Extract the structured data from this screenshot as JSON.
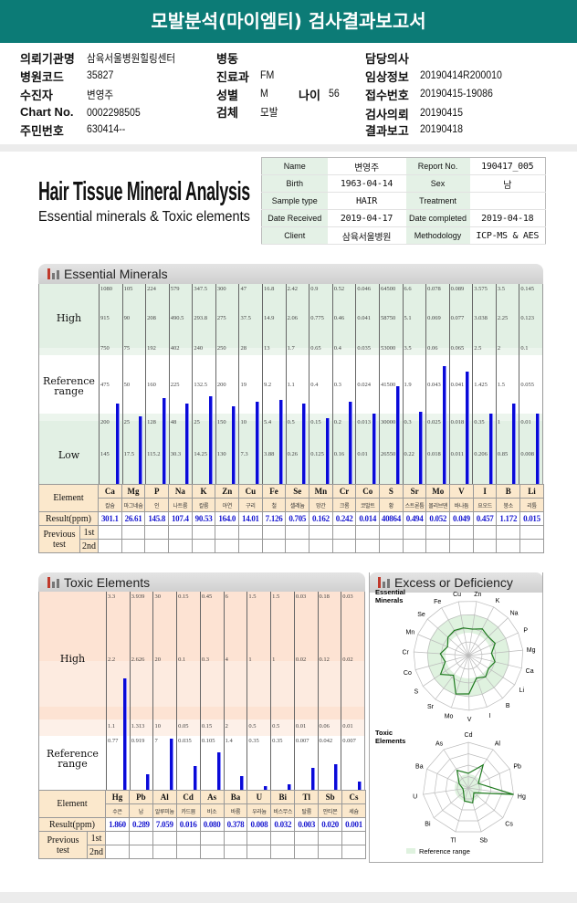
{
  "title": "모발분석(마이엠티) 검사결과보고서",
  "info": {
    "institution_label": "의뢰기관명",
    "institution": "삼육서울병원힐링센터",
    "code_label": "병원코드",
    "code": "35827",
    "patient_label": "수진자",
    "patient": "변영주",
    "chart_label": "Chart No.",
    "chart": "0002298505",
    "id_label": "주민번호",
    "id": "630414--",
    "ward_label": "병동",
    "ward": "",
    "dept_label": "진료과",
    "dept": "FM",
    "sex_label": "성별",
    "sex": "M",
    "age_label": "나이",
    "age": "56",
    "specimen_label": "검체",
    "specimen": "모발",
    "doctor_label": "담당의사",
    "doctor": "",
    "clinical_label": "임상정보",
    "clinical": "20190414R200010",
    "receipt_label": "접수번호",
    "receipt": "20190415-19086",
    "request_label": "검사의뢰",
    "request": "20190415",
    "report_label": "결과보고",
    "report": "20190418"
  },
  "report_header": {
    "title": "Hair Tissue Mineral Analysis",
    "subtitle": "Essential minerals & Toxic elements",
    "rows": [
      [
        "Name",
        "변영주",
        "Report No.",
        "190417_005"
      ],
      [
        "Birth",
        "1963-04-14",
        "Sex",
        "남"
      ],
      [
        "Sample type",
        "HAIR",
        "Treatment",
        ""
      ],
      [
        "Date Received",
        "2019-04-17",
        "Date completed",
        "2019-04-18"
      ],
      [
        "Client",
        "삼육서울병원",
        "Methodology",
        "ICP-MS & AES"
      ]
    ]
  },
  "labels": {
    "essential_title": "Essential Minerals",
    "toxic_title": "Toxic Elements",
    "radar_title": "Excess or Deficiency",
    "high": "High",
    "reference": "Reference",
    "range": "range",
    "low": "Low",
    "element": "Element",
    "result": "Result(ppm)",
    "previous": "Previous",
    "test": "test",
    "first": "1st",
    "second": "2nd",
    "radar_essential": "Essential Minerals",
    "radar_toxic": "Toxic Elements",
    "radar_legend": "Reference range"
  },
  "colors": {
    "teal": "#0c7b76",
    "bar": "#0a0ad8",
    "essential_band": "#e2f0e4",
    "toxic_band": "#fde3d3",
    "header_cell": "#fbe8cc"
  },
  "essential": [
    {
      "sym": "Ca",
      "kr": "칼슘",
      "ranges": [
        "1080",
        "915",
        "750",
        "475",
        "200",
        "145"
      ],
      "result": "301.1",
      "level": 40
    },
    {
      "sym": "Mg",
      "kr": "마그네슘",
      "ranges": [
        "105",
        "90",
        "75",
        "50",
        "25",
        "17.5"
      ],
      "result": "26.61",
      "level": 34
    },
    {
      "sym": "P",
      "kr": "인",
      "ranges": [
        "224",
        "208",
        "192",
        "160",
        "128",
        "115.2"
      ],
      "result": "145.8",
      "level": 43
    },
    {
      "sym": "Na",
      "kr": "나트륨",
      "ranges": [
        "579",
        "490.5",
        "402",
        "225",
        "48",
        "30.3"
      ],
      "result": "107.4",
      "level": 40
    },
    {
      "sym": "K",
      "kr": "칼륨",
      "ranges": [
        "347.5",
        "293.8",
        "240",
        "132.5",
        "25",
        "14.25"
      ],
      "result": "90.53",
      "level": 44
    },
    {
      "sym": "Zn",
      "kr": "아연",
      "ranges": [
        "300",
        "275",
        "250",
        "200",
        "150",
        "130"
      ],
      "result": "164.0",
      "level": 39
    },
    {
      "sym": "Cu",
      "kr": "구리",
      "ranges": [
        "47",
        "37.5",
        "28",
        "19",
        "10",
        "7.3"
      ],
      "result": "14.01",
      "level": 41
    },
    {
      "sym": "Fe",
      "kr": "철",
      "ranges": [
        "16.8",
        "14.9",
        "13",
        "9.2",
        "5.4",
        "3.88"
      ],
      "result": "7.126",
      "level": 42
    },
    {
      "sym": "Se",
      "kr": "셀레늄",
      "ranges": [
        "2.42",
        "2.06",
        "1.7",
        "1.1",
        "0.5",
        "0.26"
      ],
      "result": "0.705",
      "level": 40
    },
    {
      "sym": "Mn",
      "kr": "망간",
      "ranges": [
        "0.9",
        "0.775",
        "0.65",
        "0.4",
        "0.15",
        "0.125"
      ],
      "result": "0.162",
      "level": 33
    },
    {
      "sym": "Cr",
      "kr": "크롬",
      "ranges": [
        "0.52",
        "0.46",
        "0.4",
        "0.3",
        "0.2",
        "0.16"
      ],
      "result": "0.242",
      "level": 41
    },
    {
      "sym": "Co",
      "kr": "코발트",
      "ranges": [
        "0.046",
        "0.041",
        "0.035",
        "0.024",
        "0.013",
        "0.01"
      ],
      "result": "0.014",
      "level": 35
    },
    {
      "sym": "S",
      "kr": "황",
      "ranges": [
        "64500",
        "58750",
        "53000",
        "41500",
        "30000",
        "26550"
      ],
      "result": "40864",
      "level": 49
    },
    {
      "sym": "Sr",
      "kr": "스트론튬",
      "ranges": [
        "6.6",
        "5.1",
        "3.5",
        "1.9",
        "0.3",
        "0.22"
      ],
      "result": "0.494",
      "level": 36
    },
    {
      "sym": "Mo",
      "kr": "몰리브덴",
      "ranges": [
        "0.078",
        "0.069",
        "0.06",
        "0.043",
        "0.025",
        "0.018"
      ],
      "result": "0.052",
      "level": 59
    },
    {
      "sym": "V",
      "kr": "바나듐",
      "ranges": [
        "0.089",
        "0.077",
        "0.065",
        "0.041",
        "0.018",
        "0.011"
      ],
      "result": "0.049",
      "level": 56
    },
    {
      "sym": "I",
      "kr": "요오드",
      "ranges": [
        "3.575",
        "3.038",
        "2.5",
        "1.425",
        "0.35",
        "0.206"
      ],
      "result": "0.457",
      "level": 35
    },
    {
      "sym": "B",
      "kr": "붕소",
      "ranges": [
        "3.5",
        "2.25",
        "2",
        "1.5",
        "1",
        "0.85"
      ],
      "result": "1.172",
      "level": 40
    },
    {
      "sym": "Li",
      "kr": "리튬",
      "ranges": [
        "0.145",
        "0.123",
        "0.1",
        "0.055",
        "0.01",
        "0.008"
      ],
      "result": "0.015",
      "level": 35
    }
  ],
  "toxic": [
    {
      "sym": "Hg",
      "kr": "수은",
      "ranges": [
        "3.3",
        "2.2",
        "1.1",
        "0.77"
      ],
      "result": "1.860",
      "level": 56
    },
    {
      "sym": "Pb",
      "kr": "납",
      "ranges": [
        "3.939",
        "2.626",
        "1.313",
        "0.919"
      ],
      "result": "0.289",
      "level": 8
    },
    {
      "sym": "Al",
      "kr": "알루미늄",
      "ranges": [
        "30",
        "20",
        "10",
        "7"
      ],
      "result": "7.059",
      "level": 26
    },
    {
      "sym": "Cd",
      "kr": "카드뮴",
      "ranges": [
        "0.15",
        "0.1",
        "0.05",
        "0.035"
      ],
      "result": "0.016",
      "level": 12
    },
    {
      "sym": "As",
      "kr": "비소",
      "ranges": [
        "0.45",
        "0.3",
        "0.15",
        "0.105"
      ],
      "result": "0.080",
      "level": 19
    },
    {
      "sym": "Ba",
      "kr": "바륨",
      "ranges": [
        "6",
        "4",
        "2",
        "1.4"
      ],
      "result": "0.378",
      "level": 7
    },
    {
      "sym": "U",
      "kr": "우라늄",
      "ranges": [
        "1.5",
        "1",
        "0.5",
        "0.35"
      ],
      "result": "0.008",
      "level": 2
    },
    {
      "sym": "Bi",
      "kr": "비스무스",
      "ranges": [
        "1.5",
        "1",
        "0.5",
        "0.35"
      ],
      "result": "0.032",
      "level": 3
    },
    {
      "sym": "Tl",
      "kr": "탈륨",
      "ranges": [
        "0.03",
        "0.02",
        "0.01",
        "0.007"
      ],
      "result": "0.003",
      "level": 11
    },
    {
      "sym": "Sb",
      "kr": "안티몬",
      "ranges": [
        "0.18",
        "0.12",
        "0.06",
        "0.042"
      ],
      "result": "0.020",
      "level": 13
    },
    {
      "sym": "Cs",
      "kr": "세슘",
      "ranges": [
        "0.03",
        "0.02",
        "0.01",
        "0.007"
      ],
      "result": "0.001",
      "level": 4
    }
  ],
  "radar_essential_order": [
    "Zn",
    "K",
    "Na",
    "P",
    "Mg",
    "Ca",
    "Li",
    "B",
    "I",
    "V",
    "Mo",
    "Sr",
    "S",
    "Co",
    "Cr",
    "Mn",
    "Se",
    "Fe",
    "Cu"
  ],
  "radar_toxic_order": [
    "Cd",
    "Al",
    "Pb",
    "Hg",
    "Cs",
    "Sb",
    "Tl",
    "Bi",
    "U",
    "Ba",
    "As"
  ]
}
